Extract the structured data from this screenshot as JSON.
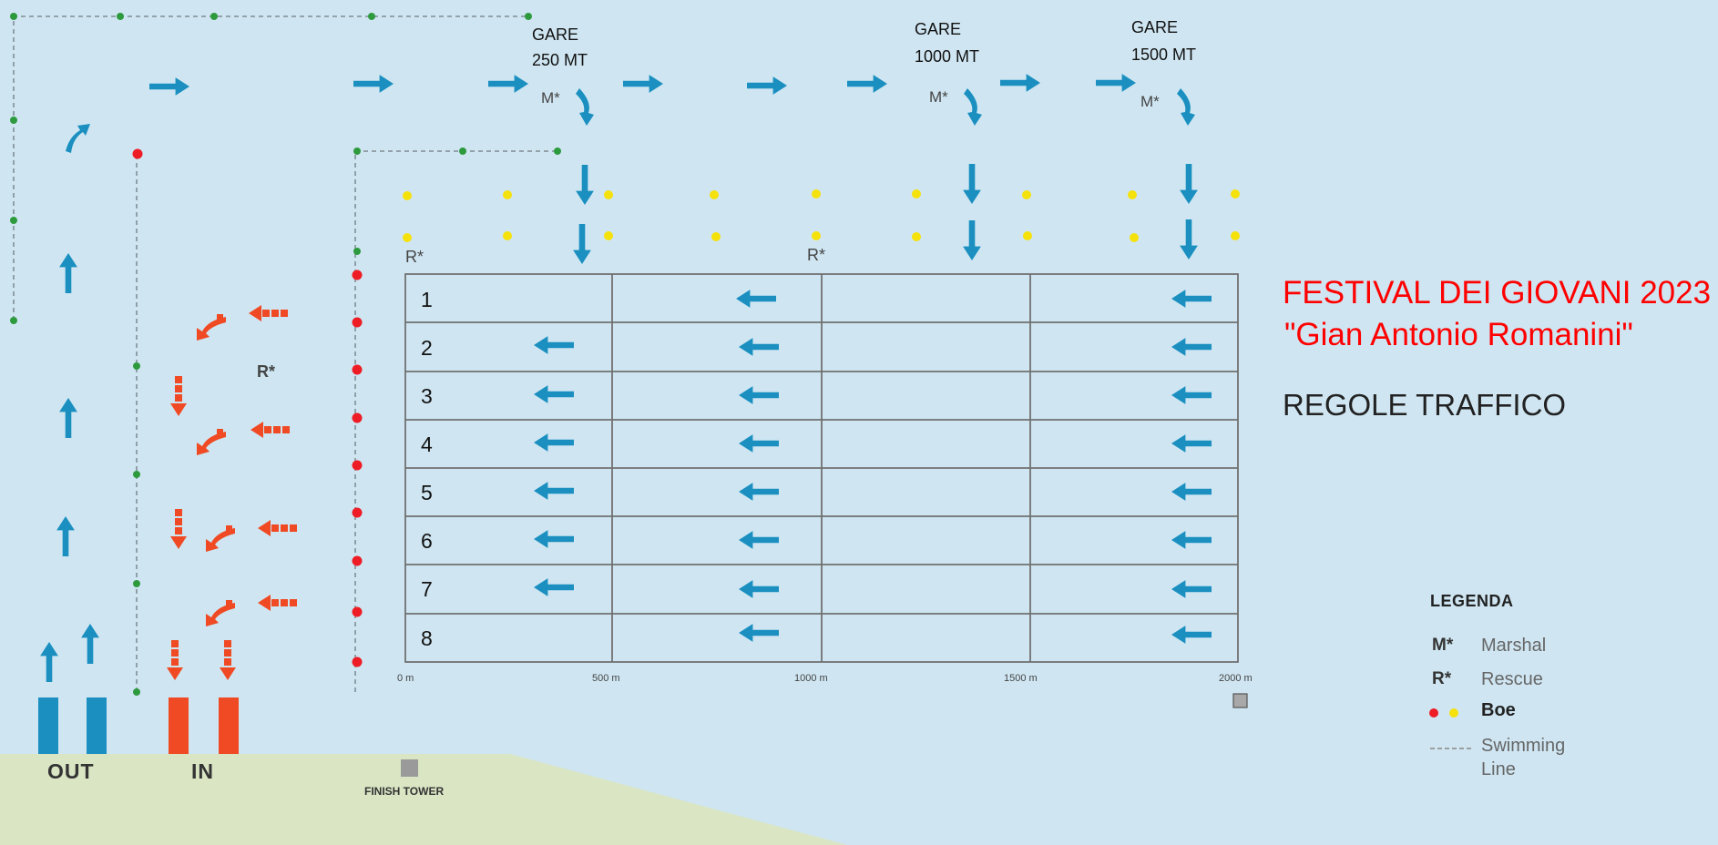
{
  "title": {
    "line1": "FESTIVAL DEI GIOVANI 2023",
    "line2": "\"Gian Antonio Romanini\"",
    "subtitle": "REGOLE TRAFFICO"
  },
  "races": [
    {
      "label_line1": "GARE",
      "label_line2": "250 MT",
      "marshal": "M*"
    },
    {
      "label_line1": "GARE",
      "label_line2": "1000 MT",
      "marshal": "M*"
    },
    {
      "label_line1": "GARE",
      "label_line2": "1500 MT",
      "marshal": "M*"
    }
  ],
  "rescue_markers": [
    "R*",
    "R*",
    "R*"
  ],
  "lanes": [
    "1",
    "2",
    "3",
    "4",
    "5",
    "6",
    "7",
    "8"
  ],
  "distance_ticks": [
    "0 m",
    "500 m",
    "1000 m",
    "1500 m",
    "2000 m"
  ],
  "shore": {
    "out_label": "OUT",
    "in_label": "IN",
    "finish_tower": "FINISH TOWER"
  },
  "legend": {
    "title": "LEGENDA",
    "items": [
      {
        "key": "M*",
        "value": "Marshal"
      },
      {
        "key": "R*",
        "value": "Rescue"
      },
      {
        "key": "",
        "value": "Boe"
      },
      {
        "key": "",
        "value": "Swimming Line",
        "value_line1": "Swimming",
        "value_line2": "Line"
      }
    ]
  },
  "colors": {
    "water": "#cfe6f2",
    "land": "#d9e5c3",
    "out_arrow": "#1a8fc0",
    "in_arrow": "#ef4a23",
    "buoy_red": "#ee1c25",
    "buoy_yellow": "#f5e10c",
    "swim_line_dot": "#2d9a3e",
    "title_red": "#ff0000"
  }
}
